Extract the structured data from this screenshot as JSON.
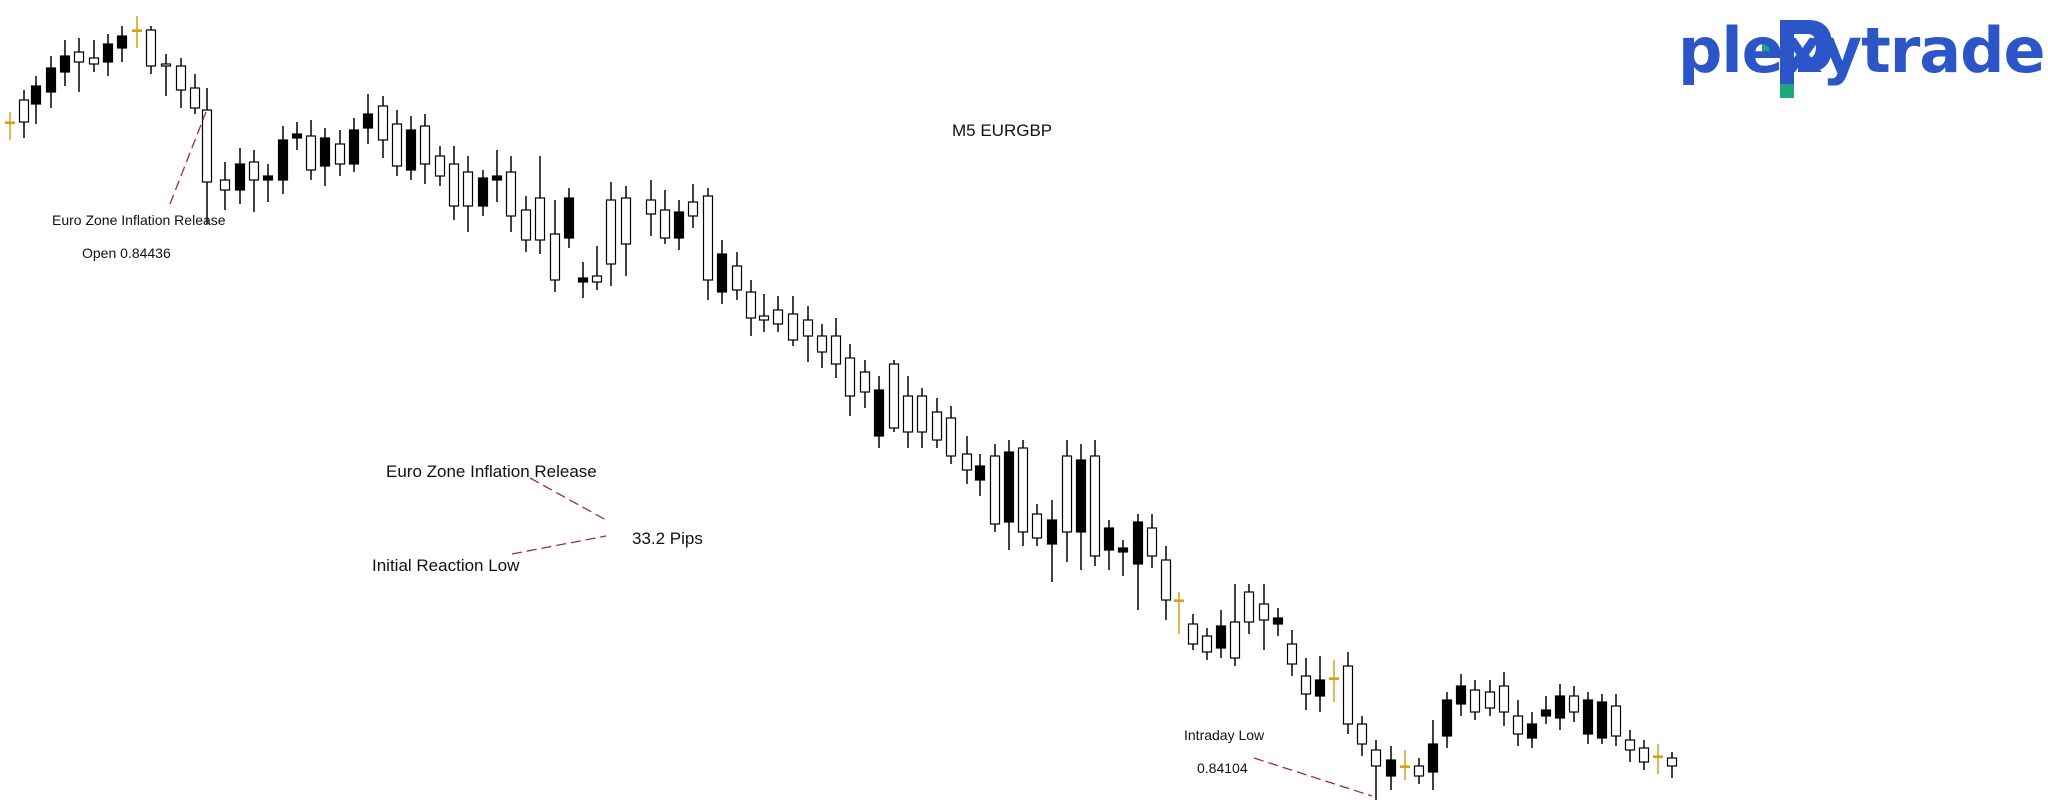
{
  "chart_data": {
    "type": "candlestick",
    "title": "M5 EURGBP",
    "brand": "plexytrade",
    "colors": {
      "bull": "#ffffff",
      "bear": "#000000",
      "doji": "#d4a017",
      "annotation_line": "#9b3030",
      "brand_green": "#1fa67a",
      "brand_blue": "#2c55c8"
    },
    "annotations": [
      {
        "text": "Euro Zone Inflation Release"
      },
      {
        "text": "Open 0.84436"
      },
      {
        "text": "Euro Zone Inflation Release"
      },
      {
        "text": "33.2 Pips"
      },
      {
        "text": "Initial Reaction Low"
      },
      {
        "text": "Intraday Low"
      },
      {
        "text": "0.84104"
      }
    ],
    "open_price": 0.84436,
    "intraday_low": 0.84104,
    "move_pips": 33.2
  }
}
